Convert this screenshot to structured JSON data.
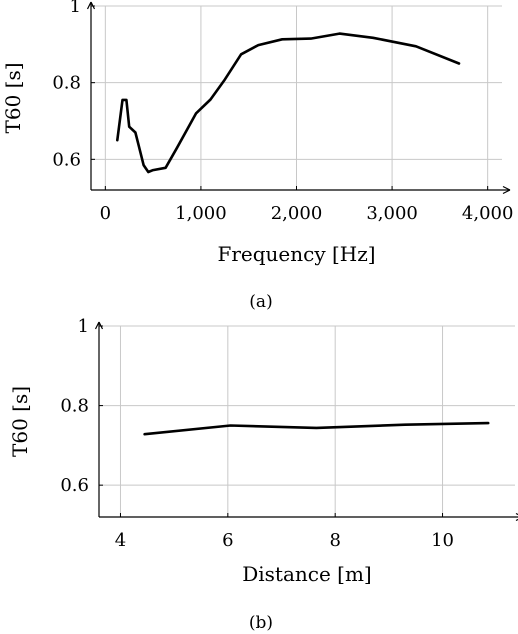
{
  "chart_data": [
    {
      "type": "line",
      "caption": "(a)",
      "xlabel": "Frequency [Hz]",
      "ylabel": "T60 [s]",
      "xlim": [
        -150,
        4150
      ],
      "ylim": [
        0.52,
        1.0
      ],
      "xticks": [
        0,
        1000,
        2000,
        3000,
        4000
      ],
      "xtick_labels": [
        "0",
        "1,000",
        "2,000",
        "3,000",
        "4,000"
      ],
      "yticks": [
        0.6,
        0.8,
        1.0
      ],
      "ytick_labels": [
        "0.6",
        "0.8",
        "1"
      ],
      "grid": true,
      "series": [
        {
          "x": [
            125,
            180,
            220,
            250,
            315,
            350,
            400,
            450,
            500,
            630,
            750,
            950,
            1100,
            1250,
            1420,
            1600,
            1850,
            2150,
            2450,
            2800,
            3250,
            3700
          ],
          "y": [
            0.65,
            0.755,
            0.755,
            0.685,
            0.67,
            0.635,
            0.585,
            0.567,
            0.572,
            0.578,
            0.63,
            0.72,
            0.756,
            0.808,
            0.874,
            0.898,
            0.913,
            0.915,
            0.928,
            0.917,
            0.895,
            0.85
          ]
        }
      ]
    },
    {
      "type": "line",
      "caption": "(b)",
      "xlabel": "Distance [m]",
      "ylabel": "T60 [s]",
      "xlim": [
        3.6,
        11.35
      ],
      "ylim": [
        0.52,
        1.0
      ],
      "xticks": [
        4,
        6,
        8,
        10
      ],
      "xtick_labels": [
        "4",
        "6",
        "8",
        "10"
      ],
      "yticks": [
        0.6,
        0.8,
        1.0
      ],
      "ytick_labels": [
        "0.6",
        "0.8",
        "1"
      ],
      "grid": true,
      "series": [
        {
          "x": [
            4.45,
            6.05,
            7.65,
            9.3,
            10.85
          ],
          "y": [
            0.728,
            0.75,
            0.744,
            0.752,
            0.756
          ]
        }
      ]
    }
  ]
}
